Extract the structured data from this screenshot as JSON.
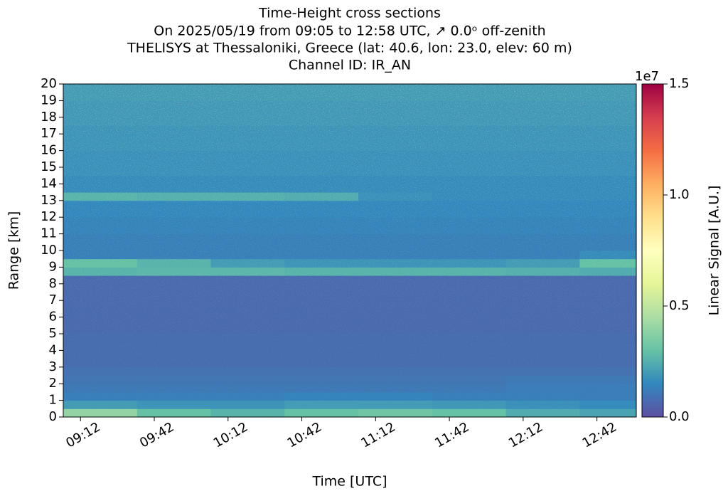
{
  "chart_data": {
    "type": "heatmap",
    "title": "Time-Height cross sections",
    "subtitle_lines": [
      "On 2025/05/19 from 09:05 to 12:58 UTC,  ↗  0.0ᵒ off-zenith",
      "THELISYS at Thessaloniki, Greece (lat: 40.6, lon: 23.0, elev: 60 m)",
      "Channel ID: IR_AN"
    ],
    "xlabel": "Time [UTC]",
    "ylabel": "Range [km]",
    "colorbar_label": "Linear Signal [A.U.]",
    "colorbar_offset": "1e7",
    "colormap": "Spectral_r",
    "xlim": [
      545,
      778
    ],
    "xticks": [
      {
        "value": 552,
        "label": "09:12"
      },
      {
        "value": 582,
        "label": "09:42"
      },
      {
        "value": 612,
        "label": "10:12"
      },
      {
        "value": 642,
        "label": "10:42"
      },
      {
        "value": 672,
        "label": "11:12"
      },
      {
        "value": 702,
        "label": "11:42"
      },
      {
        "value": 732,
        "label": "12:12"
      },
      {
        "value": 762,
        "label": "12:42"
      }
    ],
    "ylim": [
      0,
      20
    ],
    "yticks": [
      0,
      1,
      2,
      3,
      4,
      5,
      6,
      7,
      8,
      9,
      10,
      11,
      12,
      13,
      14,
      15,
      16,
      17,
      18,
      19,
      20
    ],
    "zlim": [
      0,
      1.5
    ],
    "zticks": [
      {
        "value": 0,
        "label": "0.0"
      },
      {
        "value": 0.5,
        "label": "0.5"
      },
      {
        "value": 1,
        "label": "1.0"
      },
      {
        "value": 1.5,
        "label": "1.5"
      }
    ],
    "x_bins": [
      545,
      575,
      605,
      635,
      665,
      695,
      725,
      755,
      778
    ],
    "y_bins": [
      0,
      0.5,
      1,
      1.5,
      2,
      2.5,
      3,
      3.5,
      4,
      4.5,
      5,
      5.5,
      6,
      6.5,
      7,
      7.5,
      8,
      8.5,
      9,
      9.5,
      10,
      10.5,
      11,
      11.5,
      12,
      12.5,
      13,
      13.5,
      14,
      14.5,
      15,
      15.5,
      16,
      16.5,
      17,
      17.5,
      18,
      18.5,
      19,
      19.5,
      20
    ],
    "z": [
      [
        0.4,
        0.3,
        0.26,
        0.3,
        0.32,
        0.3,
        0.24,
        0.22
      ],
      [
        0.2,
        0.18,
        0.18,
        0.2,
        0.2,
        0.19,
        0.17,
        0.16
      ],
      [
        0.13,
        0.13,
        0.13,
        0.14,
        0.14,
        0.13,
        0.13,
        0.12
      ],
      [
        0.11,
        0.11,
        0.11,
        0.11,
        0.11,
        0.11,
        0.12,
        0.12
      ],
      [
        0.1,
        0.1,
        0.1,
        0.1,
        0.1,
        0.1,
        0.11,
        0.11
      ],
      [
        0.09,
        0.09,
        0.09,
        0.09,
        0.09,
        0.09,
        0.09,
        0.09
      ],
      [
        0.08,
        0.08,
        0.08,
        0.08,
        0.08,
        0.08,
        0.08,
        0.08
      ],
      [
        0.08,
        0.08,
        0.08,
        0.08,
        0.08,
        0.08,
        0.08,
        0.08
      ],
      [
        0.08,
        0.08,
        0.08,
        0.08,
        0.08,
        0.08,
        0.08,
        0.08
      ],
      [
        0.08,
        0.08,
        0.08,
        0.08,
        0.08,
        0.08,
        0.08,
        0.08
      ],
      [
        0.07,
        0.07,
        0.07,
        0.07,
        0.07,
        0.07,
        0.07,
        0.07
      ],
      [
        0.07,
        0.07,
        0.07,
        0.07,
        0.07,
        0.07,
        0.07,
        0.07
      ],
      [
        0.07,
        0.07,
        0.07,
        0.07,
        0.07,
        0.07,
        0.07,
        0.07
      ],
      [
        0.07,
        0.07,
        0.07,
        0.07,
        0.07,
        0.07,
        0.07,
        0.07
      ],
      [
        0.07,
        0.07,
        0.07,
        0.07,
        0.07,
        0.07,
        0.07,
        0.07
      ],
      [
        0.07,
        0.07,
        0.07,
        0.07,
        0.07,
        0.07,
        0.07,
        0.07
      ],
      [
        0.07,
        0.07,
        0.07,
        0.07,
        0.07,
        0.07,
        0.07,
        0.07
      ],
      [
        0.26,
        0.27,
        0.27,
        0.26,
        0.26,
        0.26,
        0.25,
        0.24
      ],
      [
        0.3,
        0.26,
        0.2,
        0.18,
        0.18,
        0.18,
        0.2,
        0.3
      ],
      [
        0.13,
        0.13,
        0.13,
        0.13,
        0.13,
        0.13,
        0.13,
        0.16
      ],
      [
        0.13,
        0.13,
        0.13,
        0.13,
        0.13,
        0.13,
        0.13,
        0.13
      ],
      [
        0.13,
        0.13,
        0.13,
        0.13,
        0.13,
        0.13,
        0.13,
        0.13
      ],
      [
        0.14,
        0.14,
        0.14,
        0.14,
        0.14,
        0.14,
        0.14,
        0.14
      ],
      [
        0.14,
        0.14,
        0.14,
        0.14,
        0.14,
        0.14,
        0.14,
        0.14
      ],
      [
        0.15,
        0.15,
        0.15,
        0.15,
        0.15,
        0.15,
        0.15,
        0.15
      ],
      [
        0.15,
        0.15,
        0.15,
        0.15,
        0.15,
        0.15,
        0.15,
        0.15
      ],
      [
        0.26,
        0.25,
        0.25,
        0.24,
        0.17,
        0.16,
        0.16,
        0.16
      ],
      [
        0.16,
        0.16,
        0.16,
        0.16,
        0.16,
        0.16,
        0.16,
        0.16
      ],
      [
        0.16,
        0.16,
        0.16,
        0.16,
        0.16,
        0.16,
        0.16,
        0.16
      ],
      [
        0.17,
        0.17,
        0.17,
        0.17,
        0.17,
        0.17,
        0.17,
        0.17
      ],
      [
        0.17,
        0.17,
        0.17,
        0.17,
        0.17,
        0.17,
        0.17,
        0.17
      ],
      [
        0.17,
        0.17,
        0.17,
        0.17,
        0.17,
        0.17,
        0.17,
        0.17
      ],
      [
        0.18,
        0.18,
        0.18,
        0.18,
        0.18,
        0.18,
        0.18,
        0.18
      ],
      [
        0.18,
        0.18,
        0.18,
        0.18,
        0.18,
        0.18,
        0.18,
        0.18
      ],
      [
        0.18,
        0.18,
        0.18,
        0.18,
        0.18,
        0.18,
        0.18,
        0.18
      ],
      [
        0.19,
        0.19,
        0.19,
        0.19,
        0.19,
        0.19,
        0.19,
        0.19
      ],
      [
        0.19,
        0.19,
        0.19,
        0.19,
        0.19,
        0.19,
        0.19,
        0.19
      ],
      [
        0.19,
        0.19,
        0.19,
        0.19,
        0.19,
        0.19,
        0.19,
        0.19
      ],
      [
        0.2,
        0.2,
        0.2,
        0.2,
        0.2,
        0.2,
        0.2,
        0.2
      ],
      [
        0.2,
        0.2,
        0.2,
        0.2,
        0.2,
        0.2,
        0.2,
        0.2
      ]
    ]
  }
}
